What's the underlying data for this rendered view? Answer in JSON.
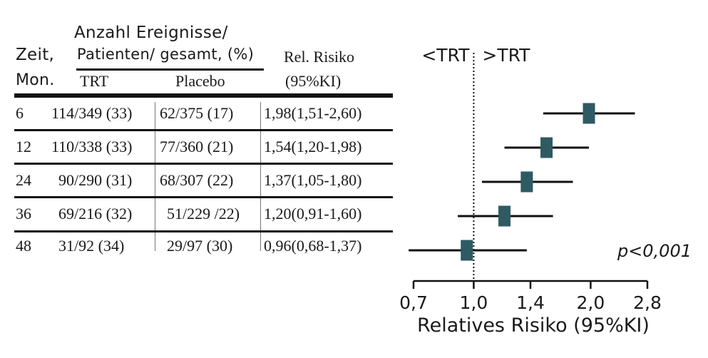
{
  "table": {
    "header": {
      "zeit_line1": "Zeit,",
      "zeit_line2": "Mon.",
      "events_line1": "Anzahl Ereignisse/",
      "events_line2": "Patienten/ gesamt, (%)",
      "trt": "TRT",
      "placebo": "Placebo",
      "rr_line1": "Rel. Risiko",
      "rr_line2": "(95%KI)"
    },
    "rows": [
      {
        "zeit": "6",
        "trt": "114/349 (33)",
        "placebo": "62/375 (17)",
        "rr": "1,98(1,51-2,60)"
      },
      {
        "zeit": "12",
        "trt": "110/338 (33)",
        "placebo": "77/360 (21)",
        "rr": "1,54(1,20-1,98)"
      },
      {
        "zeit": "24",
        "trt": "90/290 (31)",
        "placebo": "68/307 (22)",
        "rr": "1,37(1,05-1,80)"
      },
      {
        "zeit": "36",
        "trt": "69/216 (32)",
        "placebo": "51/229 /22)",
        "rr": "1,20(0,91-1,60)"
      },
      {
        "zeit": "48",
        "trt": "31/92 (34)",
        "placebo": "29/97 (30)",
        "rr": "0,96(0,68-1,37)"
      }
    ]
  },
  "chart_data": {
    "type": "forest",
    "xlabel": "Relatives Risiko (95%KI)",
    "x_scale": "log",
    "xlim": [
      0.7,
      2.8
    ],
    "x_ticks": [
      0.7,
      1.0,
      1.4,
      2.0,
      2.8
    ],
    "x_tick_labels": [
      "0,7",
      "1,0",
      "1,4",
      "2,0",
      "2,8"
    ],
    "reference_line": 1.0,
    "left_label": "<TRT",
    "right_label": ">TRT",
    "annotation": "p<0,001",
    "points": [
      {
        "zeit": "6",
        "rr": 1.98,
        "lower": 1.51,
        "upper": 2.6
      },
      {
        "zeit": "12",
        "rr": 1.54,
        "lower": 1.2,
        "upper": 1.98
      },
      {
        "zeit": "24",
        "rr": 1.37,
        "lower": 1.05,
        "upper": 1.8
      },
      {
        "zeit": "36",
        "rr": 1.2,
        "lower": 0.91,
        "upper": 1.6
      },
      {
        "zeit": "48",
        "rr": 0.96,
        "lower": 0.68,
        "upper": 1.37
      }
    ],
    "colors": {
      "marker": "#2e5a63",
      "line": "#111111"
    }
  }
}
